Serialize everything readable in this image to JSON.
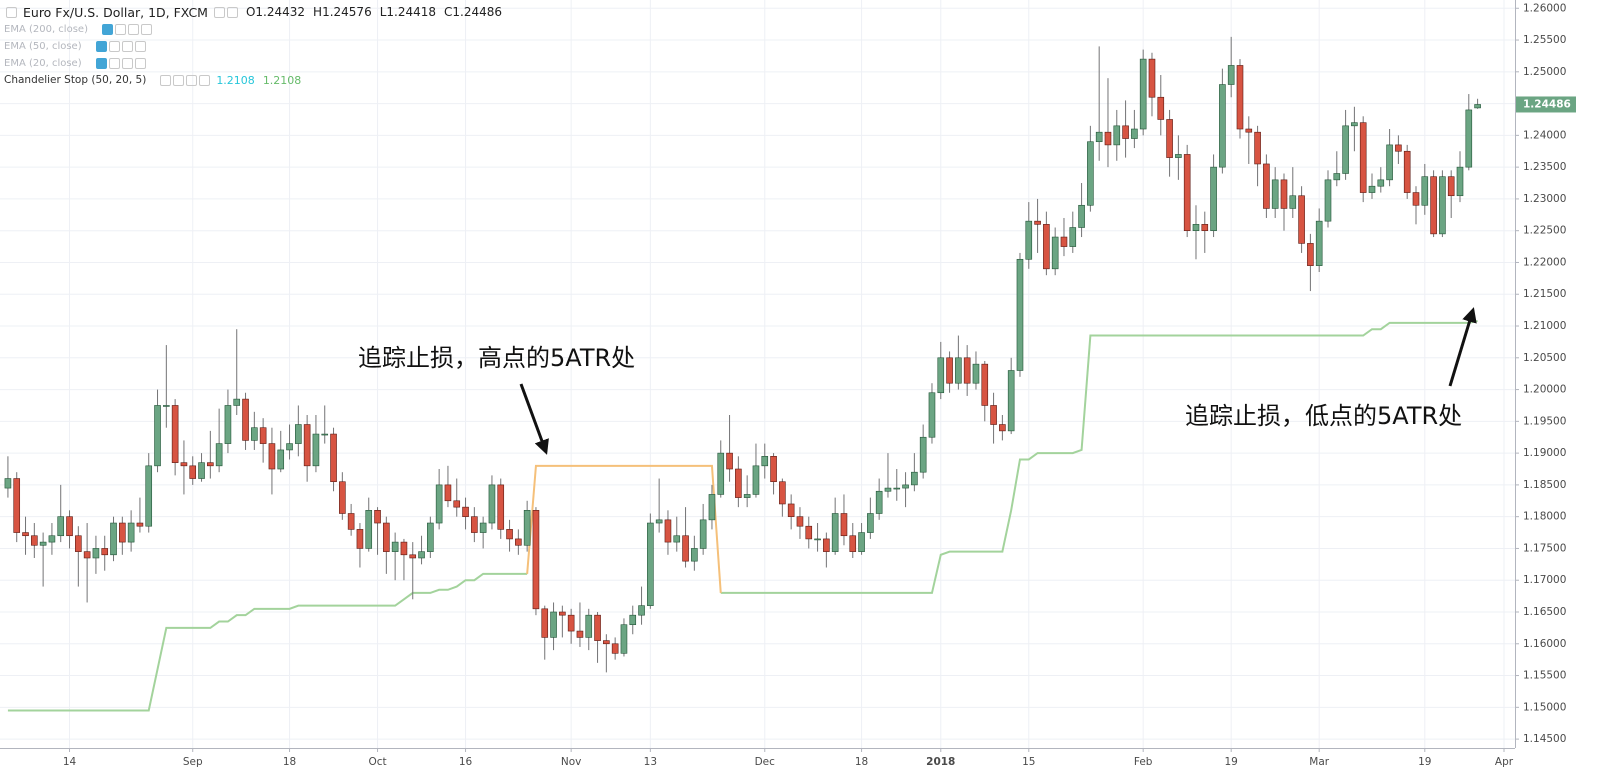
{
  "header": {
    "symbol": "Euro Fx/U.S. Dollar, 1D, FXCM",
    "ohlc": [
      {
        "label": "O",
        "value": 1.24432
      },
      {
        "label": "H",
        "value": 1.24576
      },
      {
        "label": "L",
        "value": 1.24418
      },
      {
        "label": "C",
        "value": 1.24486
      }
    ]
  },
  "indicators": [
    {
      "label": "EMA (200, close)"
    },
    {
      "label": "EMA (50, close)"
    },
    {
      "label": "EMA (20, close)"
    },
    {
      "label": "Chandelier Stop (50, 20, 5)",
      "values": [
        1.2108,
        1.2108
      ]
    }
  ],
  "chart_data": {
    "type": "candlestick",
    "up_color": "#6ba583",
    "down_color": "#d75442",
    "open": [
      1.1845,
      1.186,
      1.1775,
      1.177,
      1.1755,
      1.176,
      1.177,
      1.18,
      1.177,
      1.1745,
      1.1735,
      1.175,
      1.174,
      1.179,
      1.176,
      1.179,
      1.1785,
      1.188,
      1.1975,
      1.1975,
      1.1885,
      1.188,
      1.186,
      1.1885,
      1.188,
      1.1915,
      1.1975,
      1.1985,
      1.192,
      1.194,
      1.1915,
      1.1875,
      1.1905,
      1.1915,
      1.1945,
      1.188,
      1.193,
      1.193,
      1.1855,
      1.1805,
      1.178,
      1.175,
      1.181,
      1.179,
      1.1745,
      1.176,
      1.174,
      1.1735,
      1.1745,
      1.179,
      1.185,
      1.1825,
      1.1815,
      1.18,
      1.1775,
      1.179,
      1.185,
      1.178,
      1.1765,
      1.1755,
      1.181,
      1.1655,
      1.161,
      1.165,
      1.1645,
      1.162,
      1.161,
      1.1645,
      1.1605,
      1.16,
      1.1585,
      1.163,
      1.1645,
      1.166,
      1.179,
      1.1795,
      1.176,
      1.177,
      1.173,
      1.175,
      1.1795,
      1.1835,
      1.19,
      1.1875,
      1.183,
      1.1835,
      1.188,
      1.1895,
      1.1855,
      1.182,
      1.18,
      1.1785,
      1.1765,
      1.1765,
      1.1745,
      1.1805,
      1.177,
      1.1745,
      1.1775,
      1.1805,
      1.184,
      1.1845,
      1.1845,
      1.185,
      1.187,
      1.1925,
      1.1995,
      1.205,
      1.201,
      1.205,
      1.201,
      1.204,
      1.1975,
      1.1945,
      1.1935,
      1.203,
      1.2205,
      1.2265,
      1.226,
      1.219,
      1.224,
      1.2225,
      1.2255,
      1.229,
      1.239,
      1.2405,
      1.2385,
      1.2415,
      1.2395,
      1.241,
      1.252,
      1.246,
      1.2425,
      1.2365,
      1.237,
      1.225,
      1.226,
      1.225,
      1.235,
      1.248,
      1.251,
      1.241,
      1.2405,
      1.2355,
      1.2285,
      1.233,
      1.2285,
      1.2305,
      1.223,
      1.2195,
      1.2265,
      1.233,
      1.234,
      1.2415,
      1.242,
      1.231,
      1.232,
      1.233,
      1.2385,
      1.2375,
      1.231,
      1.229,
      1.2335,
      1.2245,
      1.2335,
      1.2305,
      1.235,
      1.24432
    ],
    "high": [
      1.1895,
      1.187,
      1.18,
      1.179,
      1.1775,
      1.179,
      1.185,
      1.181,
      1.1785,
      1.179,
      1.177,
      1.177,
      1.18,
      1.18,
      1.181,
      1.183,
      1.19,
      1.2,
      1.207,
      1.1985,
      1.192,
      1.1895,
      1.19,
      1.1935,
      1.197,
      1.2,
      1.2095,
      1.1995,
      1.1965,
      1.1955,
      1.194,
      1.1935,
      1.1945,
      1.1975,
      1.196,
      1.196,
      1.1975,
      1.194,
      1.187,
      1.182,
      1.179,
      1.183,
      1.1815,
      1.18,
      1.1775,
      1.1765,
      1.176,
      1.177,
      1.18,
      1.1875,
      1.188,
      1.186,
      1.183,
      1.1815,
      1.18,
      1.1865,
      1.186,
      1.1795,
      1.178,
      1.1825,
      1.1815,
      1.166,
      1.1665,
      1.166,
      1.1655,
      1.1665,
      1.1655,
      1.165,
      1.1615,
      1.161,
      1.164,
      1.166,
      1.169,
      1.1805,
      1.186,
      1.181,
      1.18,
      1.1815,
      1.177,
      1.182,
      1.185,
      1.192,
      1.196,
      1.1895,
      1.1865,
      1.1915,
      1.1915,
      1.19,
      1.186,
      1.1835,
      1.1815,
      1.18,
      1.179,
      1.1775,
      1.183,
      1.1835,
      1.179,
      1.179,
      1.183,
      1.186,
      1.19,
      1.1875,
      1.187,
      1.19,
      1.1945,
      1.201,
      1.2075,
      1.206,
      1.2085,
      1.207,
      1.206,
      1.2045,
      1.1995,
      1.196,
      1.205,
      1.2215,
      1.2295,
      1.23,
      1.228,
      1.2255,
      1.227,
      1.228,
      1.2325,
      1.2415,
      1.254,
      1.249,
      1.244,
      1.2455,
      1.244,
      1.2535,
      1.253,
      1.2495,
      1.244,
      1.24,
      1.2385,
      1.229,
      1.228,
      1.237,
      1.2505,
      1.2555,
      1.252,
      1.243,
      1.2415,
      1.237,
      1.235,
      1.234,
      1.235,
      1.232,
      1.2245,
      1.2285,
      1.2345,
      1.2375,
      1.244,
      1.2445,
      1.243,
      1.234,
      1.235,
      1.241,
      1.24,
      1.2385,
      1.232,
      1.2355,
      1.2345,
      1.2345,
      1.2345,
      1.2375,
      1.2465,
      1.24576
    ],
    "low": [
      1.183,
      1.176,
      1.174,
      1.1735,
      1.169,
      1.174,
      1.176,
      1.175,
      1.169,
      1.1665,
      1.171,
      1.1715,
      1.173,
      1.174,
      1.1745,
      1.1775,
      1.1775,
      1.187,
      1.194,
      1.1865,
      1.1835,
      1.185,
      1.1855,
      1.186,
      1.187,
      1.19,
      1.196,
      1.1905,
      1.1905,
      1.1885,
      1.1835,
      1.187,
      1.189,
      1.1895,
      1.1855,
      1.187,
      1.1915,
      1.184,
      1.1795,
      1.177,
      1.172,
      1.1745,
      1.174,
      1.171,
      1.17,
      1.17,
      1.167,
      1.1725,
      1.1735,
      1.178,
      1.1815,
      1.18,
      1.178,
      1.176,
      1.175,
      1.178,
      1.1765,
      1.1745,
      1.174,
      1.1745,
      1.1645,
      1.1575,
      1.159,
      1.161,
      1.16,
      1.1595,
      1.159,
      1.157,
      1.1555,
      1.1575,
      1.158,
      1.1615,
      1.163,
      1.1655,
      1.1775,
      1.174,
      1.1745,
      1.172,
      1.1715,
      1.174,
      1.178,
      1.183,
      1.1855,
      1.1815,
      1.1815,
      1.183,
      1.186,
      1.1835,
      1.18,
      1.178,
      1.1765,
      1.175,
      1.1745,
      1.172,
      1.174,
      1.1755,
      1.1735,
      1.174,
      1.1765,
      1.1795,
      1.183,
      1.1825,
      1.1815,
      1.184,
      1.186,
      1.1915,
      1.1985,
      1.1995,
      1.2,
      1.199,
      1.2,
      1.195,
      1.1915,
      1.192,
      1.193,
      1.202,
      1.219,
      1.2215,
      1.218,
      1.218,
      1.221,
      1.2215,
      1.224,
      1.228,
      1.236,
      1.235,
      1.236,
      1.2365,
      1.238,
      1.24,
      1.243,
      1.24,
      1.2335,
      1.233,
      1.224,
      1.2205,
      1.2215,
      1.224,
      1.234,
      1.246,
      1.2395,
      1.2355,
      1.232,
      1.227,
      1.227,
      1.225,
      1.227,
      1.2215,
      1.2155,
      1.2185,
      1.2255,
      1.232,
      1.233,
      1.2375,
      1.2295,
      1.23,
      1.231,
      1.232,
      1.2355,
      1.23,
      1.226,
      1.2275,
      1.224,
      1.224,
      1.227,
      1.2295,
      1.2345,
      1.24418
    ],
    "close": [
      1.186,
      1.1775,
      1.177,
      1.1755,
      1.176,
      1.177,
      1.18,
      1.177,
      1.1745,
      1.1735,
      1.175,
      1.174,
      1.179,
      1.176,
      1.179,
      1.1785,
      1.188,
      1.1975,
      1.1975,
      1.1885,
      1.188,
      1.186,
      1.1885,
      1.188,
      1.1915,
      1.1975,
      1.1985,
      1.192,
      1.194,
      1.1915,
      1.1875,
      1.1905,
      1.1915,
      1.1945,
      1.188,
      1.193,
      1.193,
      1.1855,
      1.1805,
      1.178,
      1.175,
      1.181,
      1.179,
      1.1745,
      1.176,
      1.174,
      1.1735,
      1.1745,
      1.179,
      1.185,
      1.1825,
      1.1815,
      1.18,
      1.1775,
      1.179,
      1.185,
      1.178,
      1.1765,
      1.1755,
      1.181,
      1.1655,
      1.161,
      1.165,
      1.1645,
      1.162,
      1.161,
      1.1645,
      1.1605,
      1.16,
      1.1585,
      1.163,
      1.1645,
      1.166,
      1.179,
      1.1795,
      1.176,
      1.177,
      1.173,
      1.175,
      1.1795,
      1.1835,
      1.19,
      1.1875,
      1.183,
      1.1835,
      1.188,
      1.1895,
      1.1855,
      1.182,
      1.18,
      1.1785,
      1.1765,
      1.1765,
      1.1745,
      1.1805,
      1.177,
      1.1745,
      1.1775,
      1.1805,
      1.184,
      1.1845,
      1.1845,
      1.185,
      1.187,
      1.1925,
      1.1995,
      1.205,
      1.201,
      1.205,
      1.201,
      1.204,
      1.1975,
      1.1945,
      1.1935,
      1.203,
      1.2205,
      1.2265,
      1.226,
      1.219,
      1.224,
      1.2225,
      1.2255,
      1.229,
      1.239,
      1.2405,
      1.2385,
      1.2415,
      1.2395,
      1.241,
      1.252,
      1.246,
      1.2425,
      1.2365,
      1.237,
      1.225,
      1.226,
      1.225,
      1.235,
      1.248,
      1.251,
      1.241,
      1.2405,
      1.2355,
      1.2285,
      1.233,
      1.2285,
      1.2305,
      1.223,
      1.2195,
      1.2265,
      1.233,
      1.234,
      1.2415,
      1.242,
      1.231,
      1.232,
      1.233,
      1.2385,
      1.2375,
      1.231,
      1.229,
      1.2335,
      1.2245,
      1.2335,
      1.2305,
      1.235,
      1.244,
      1.24486
    ],
    "series": [
      {
        "color": "#a3d39c",
        "values": [
          1.1495,
          1.1495,
          1.1495,
          1.1495,
          1.1495,
          1.1495,
          1.1495,
          1.1495,
          1.1495,
          1.1495,
          1.1495,
          1.1495,
          1.1495,
          1.1495,
          1.1495,
          1.1495,
          1.1495,
          1.156,
          1.1625,
          1.1625,
          1.1625,
          1.1625,
          1.1625,
          1.1625,
          1.1635,
          1.1635,
          1.1645,
          1.1645,
          1.1655,
          1.1655,
          1.1655,
          1.1655,
          1.1655,
          1.166,
          1.166,
          1.166,
          1.166,
          1.166,
          1.166,
          1.166,
          1.166,
          1.166,
          1.166,
          1.166,
          1.166,
          1.167,
          1.168,
          1.168,
          1.168,
          1.1685,
          1.1685,
          1.169,
          1.17,
          1.17,
          1.171,
          1.171,
          1.171,
          1.171,
          1.171,
          1.171,
          null,
          null,
          null,
          null,
          null,
          null,
          null,
          null,
          null,
          null,
          null,
          null,
          null,
          null,
          null,
          null,
          null,
          null,
          null,
          null,
          null,
          1.168,
          1.168,
          1.168,
          1.168,
          1.168,
          1.168,
          1.168,
          1.168,
          1.168,
          1.168,
          1.168,
          1.168,
          1.168,
          1.168,
          1.168,
          1.168,
          1.168,
          1.168,
          1.168,
          1.168,
          1.168,
          1.168,
          1.168,
          1.168,
          1.168,
          1.174,
          1.1745,
          1.1745,
          1.1745,
          1.1745,
          1.1745,
          1.1745,
          1.1745,
          1.181,
          1.189,
          1.189,
          1.19,
          1.19,
          1.19,
          1.19,
          1.19,
          1.1905,
          1.2085,
          1.2085,
          1.2085,
          1.2085,
          1.2085,
          1.2085,
          1.2085,
          1.2085,
          1.2085,
          1.2085,
          1.2085,
          1.2085,
          1.2085,
          1.2085,
          1.2085,
          1.2085,
          1.2085,
          1.2085,
          1.2085,
          1.2085,
          1.2085,
          1.2085,
          1.2085,
          1.2085,
          1.2085,
          1.2085,
          1.2085,
          1.2085,
          1.2085,
          1.2085,
          1.2085,
          1.2085,
          1.2095,
          1.2095,
          1.2105,
          1.2105,
          1.2105,
          1.2105,
          1.2105,
          1.2105,
          1.2105,
          1.2105,
          1.2105,
          1.2105,
          1.2108
        ]
      },
      {
        "color": "#f5c07a",
        "values": [
          null,
          null,
          null,
          null,
          null,
          null,
          null,
          null,
          null,
          null,
          null,
          null,
          null,
          null,
          null,
          null,
          null,
          null,
          null,
          null,
          null,
          null,
          null,
          null,
          null,
          null,
          null,
          null,
          null,
          null,
          null,
          null,
          null,
          null,
          null,
          null,
          null,
          null,
          null,
          null,
          null,
          null,
          null,
          null,
          null,
          null,
          null,
          null,
          null,
          null,
          null,
          null,
          null,
          null,
          null,
          null,
          null,
          null,
          null,
          1.171,
          1.188,
          1.188,
          1.188,
          1.188,
          1.188,
          1.188,
          1.188,
          1.188,
          1.188,
          1.188,
          1.188,
          1.188,
          1.188,
          1.188,
          1.188,
          1.188,
          1.188,
          1.188,
          1.188,
          1.188,
          1.188,
          1.168,
          null,
          null,
          null,
          null,
          null,
          null,
          null,
          null,
          null,
          null,
          null,
          null,
          null,
          null,
          null,
          null,
          null,
          null,
          null,
          null,
          null,
          null,
          null,
          null,
          null,
          null,
          null,
          null,
          null,
          null,
          null,
          null,
          null,
          null,
          null,
          null,
          null,
          null,
          null,
          null,
          null,
          null,
          null,
          null,
          null,
          null,
          null,
          null,
          null,
          null,
          null,
          null,
          null,
          null,
          null,
          null,
          null,
          null,
          null,
          null,
          null,
          null,
          null,
          null,
          null,
          null,
          null,
          null,
          null,
          null,
          null,
          null,
          null,
          null,
          null,
          null,
          null,
          null,
          null,
          null,
          null,
          null,
          null,
          null,
          null,
          null,
          null,
          null,
          null
        ]
      }
    ],
    "xlim": [
      -0.9,
      171.25
    ],
    "xticks": [
      {
        "value": 7,
        "label": "14"
      },
      {
        "value": 21,
        "label": "Sep"
      },
      {
        "value": 32,
        "label": "18"
      },
      {
        "value": 42,
        "label": "Oct"
      },
      {
        "value": 52,
        "label": "16"
      },
      {
        "value": 64,
        "label": "Nov"
      },
      {
        "value": 73,
        "label": "13"
      },
      {
        "value": 86,
        "label": "Dec"
      },
      {
        "value": 97,
        "label": "18"
      },
      {
        "value": 106,
        "label": "2018"
      },
      {
        "value": 116,
        "label": "15"
      },
      {
        "value": 129,
        "label": "Feb"
      },
      {
        "value": 139,
        "label": "19"
      },
      {
        "value": 149,
        "label": "Mar"
      },
      {
        "value": 161,
        "label": "19"
      },
      {
        "value": 170,
        "label": "Apr"
      }
    ],
    "ylim": [
      1.1436,
      1.2613
    ],
    "yticks": [
      {
        "value": 1.145,
        "label": "1.14500"
      },
      {
        "value": 1.15,
        "label": "1.15000"
      },
      {
        "value": 1.155,
        "label": "1.15500"
      },
      {
        "value": 1.16,
        "label": "1.16000"
      },
      {
        "value": 1.165,
        "label": "1.16500"
      },
      {
        "value": 1.17,
        "label": "1.17000"
      },
      {
        "value": 1.175,
        "label": "1.17500"
      },
      {
        "value": 1.18,
        "label": "1.18000"
      },
      {
        "value": 1.185,
        "label": "1.18500"
      },
      {
        "value": 1.19,
        "label": "1.19000"
      },
      {
        "value": 1.195,
        "label": "1.19500"
      },
      {
        "value": 1.2,
        "label": "1.20000"
      },
      {
        "value": 1.205,
        "label": "1.20500"
      },
      {
        "value": 1.21,
        "label": "1.21000"
      },
      {
        "value": 1.215,
        "label": "1.21500"
      },
      {
        "value": 1.22,
        "label": "1.22000"
      },
      {
        "value": 1.225,
        "label": "1.22500"
      },
      {
        "value": 1.23,
        "label": "1.23000"
      },
      {
        "value": 1.235,
        "label": "1.23500"
      },
      {
        "value": 1.24,
        "label": "1.24000"
      },
      {
        "value": 1.245,
        "label": "1.24500"
      },
      {
        "value": 1.25,
        "label": "1.25000"
      },
      {
        "value": 1.255,
        "label": "1.25500"
      },
      {
        "value": 1.26,
        "label": "1.26000"
      }
    ],
    "grid": true,
    "last_price": 1.24486,
    "annotations": [
      "追踪止损，高点的5ATR处",
      "追踪止损，低点的5ATR处"
    ]
  }
}
